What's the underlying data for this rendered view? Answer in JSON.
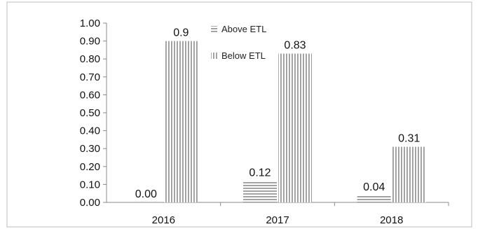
{
  "chart_data": {
    "type": "bar",
    "categories": [
      "2016",
      "2017",
      "2018"
    ],
    "series": [
      {
        "name": "Above ETL",
        "values": [
          0.0,
          0.12,
          0.04
        ],
        "labels": [
          "0.00",
          "0.12",
          "0.04"
        ],
        "pattern": "horizontal-lines"
      },
      {
        "name": "Below ETL",
        "values": [
          0.9,
          0.83,
          0.31
        ],
        "labels": [
          "0.9",
          "0.83",
          "0.31"
        ],
        "pattern": "vertical-lines"
      }
    ],
    "y_ticks": [
      "0.00",
      "0.10",
      "0.20",
      "0.30",
      "0.40",
      "0.50",
      "0.60",
      "0.70",
      "0.80",
      "0.90",
      "1.00"
    ],
    "ylim": [
      0,
      1.0
    ],
    "title": "",
    "xlabel": "",
    "ylabel": "",
    "grid": false,
    "legend_position": "top-center",
    "colors": {
      "bar_fill": "#ffffff",
      "bar_stripe": "#9a9a9a",
      "axis": "#888888",
      "frame": "#bdbdbd"
    }
  }
}
